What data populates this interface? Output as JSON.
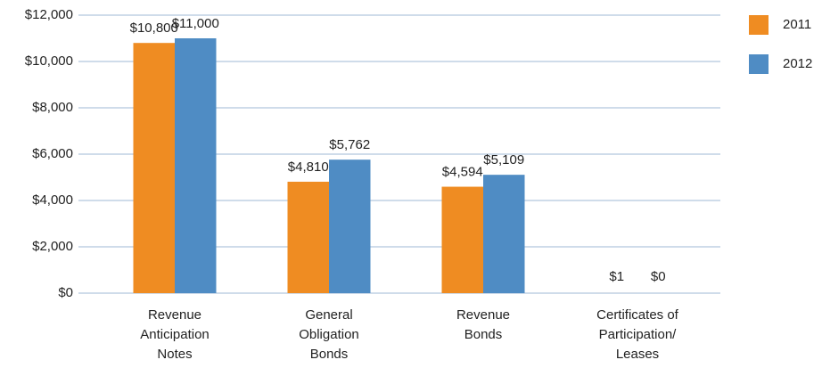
{
  "chart_data": {
    "type": "bar",
    "categories": [
      [
        "Revenue",
        "Anticipation",
        "Notes"
      ],
      [
        "General",
        "Obligation",
        "Bonds"
      ],
      [
        "Revenue",
        "Bonds"
      ],
      [
        "Certificates of",
        "Participation/",
        "Leases"
      ]
    ],
    "series": [
      {
        "name": "2011",
        "color": "#ef8c22",
        "values": [
          10800,
          4810,
          4594,
          1
        ],
        "value_labels": [
          "$10,800",
          "$4,810",
          "$4,594",
          "$1"
        ]
      },
      {
        "name": "2012",
        "color": "#4f8cc4",
        "values": [
          11000,
          5762,
          5109,
          0
        ],
        "value_labels": [
          "$11,000",
          "$5,762",
          "$5,109",
          "$0"
        ]
      }
    ],
    "ylim": [
      0,
      12000
    ],
    "yticks": [
      {
        "value": 0,
        "label": "$0"
      },
      {
        "value": 2000,
        "label": "$2,000"
      },
      {
        "value": 4000,
        "label": "$4,000"
      },
      {
        "value": 6000,
        "label": "$6,000"
      },
      {
        "value": 8000,
        "label": "$8,000"
      },
      {
        "value": 10000,
        "label": "$10,000"
      },
      {
        "value": 12000,
        "label": "$12,000"
      }
    ],
    "grid": true,
    "legend": "right"
  }
}
